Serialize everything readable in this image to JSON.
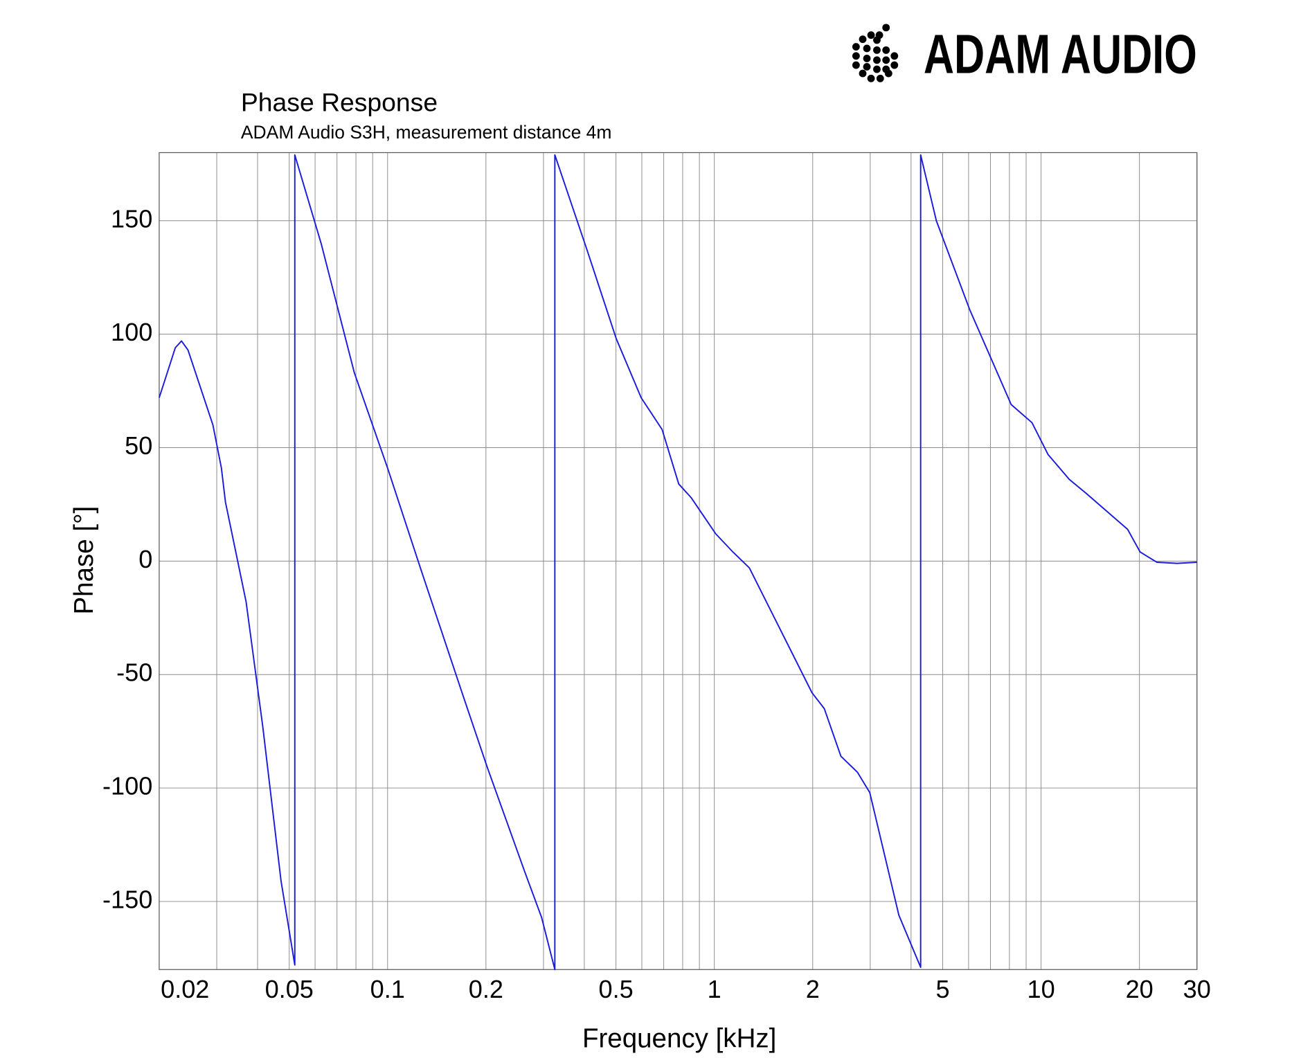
{
  "chart_data": {
    "type": "line",
    "logo": "ADAM AUDIO",
    "title": "Phase Response",
    "subtitle": "ADAM Audio S3H, measurement distance 4m",
    "x_label": "Frequency [kHz]",
    "y_label": "Phase [°]",
    "x_log": true,
    "grid": true,
    "xlim": [
      0.02,
      30
    ],
    "ylim": [
      -180,
      180
    ],
    "xticks": [
      0.02,
      0.05,
      0.1,
      0.2,
      0.5,
      1,
      2,
      5,
      10,
      20,
      30
    ],
    "x_minor_grid": [
      0.03,
      0.04,
      0.06,
      0.07,
      0.08,
      0.09,
      0.3,
      0.4,
      0.6,
      0.7,
      0.8,
      0.9,
      3,
      4,
      6,
      7,
      8,
      9
    ],
    "yticks": [
      -150,
      -100,
      -50,
      0,
      50,
      100,
      150
    ],
    "series": [
      {
        "color": "#1a1adc",
        "x": [
          0.02,
          0.0224,
          0.0234,
          0.0245,
          0.0292,
          0.031,
          0.0319,
          0.0369,
          0.0415,
          0.0472,
          0.052,
          0.052,
          0.0626,
          0.0791,
          0.1,
          0.126,
          0.169,
          0.202,
          0.263,
          0.296,
          0.325,
          0.325,
          0.408,
          0.501,
          0.597,
          0.692,
          0.778,
          0.849,
          1.01,
          1.14,
          1.28,
          1.99,
          2.17,
          2.44,
          2.74,
          2.99,
          3.67,
          4.28,
          4.28,
          4.78,
          6.04,
          8.1,
          9.38,
          10.5,
          12.2,
          13.7,
          18.4,
          20.1,
          22.6,
          26.1,
          30
        ],
        "values": [
          72,
          94,
          97,
          93,
          60,
          41,
          26,
          -18,
          -73,
          -141,
          -178,
          179,
          140,
          83,
          41,
          -3,
          -58,
          -91,
          -137,
          -157,
          -180,
          179,
          137,
          98,
          72,
          58,
          34,
          28,
          12,
          4,
          -3,
          -58,
          -65,
          -86,
          -93,
          -102,
          -156,
          -179,
          179,
          150,
          111,
          69,
          61,
          47,
          36,
          30,
          14,
          4,
          -0.5,
          -1,
          -0.5
        ]
      }
    ]
  }
}
